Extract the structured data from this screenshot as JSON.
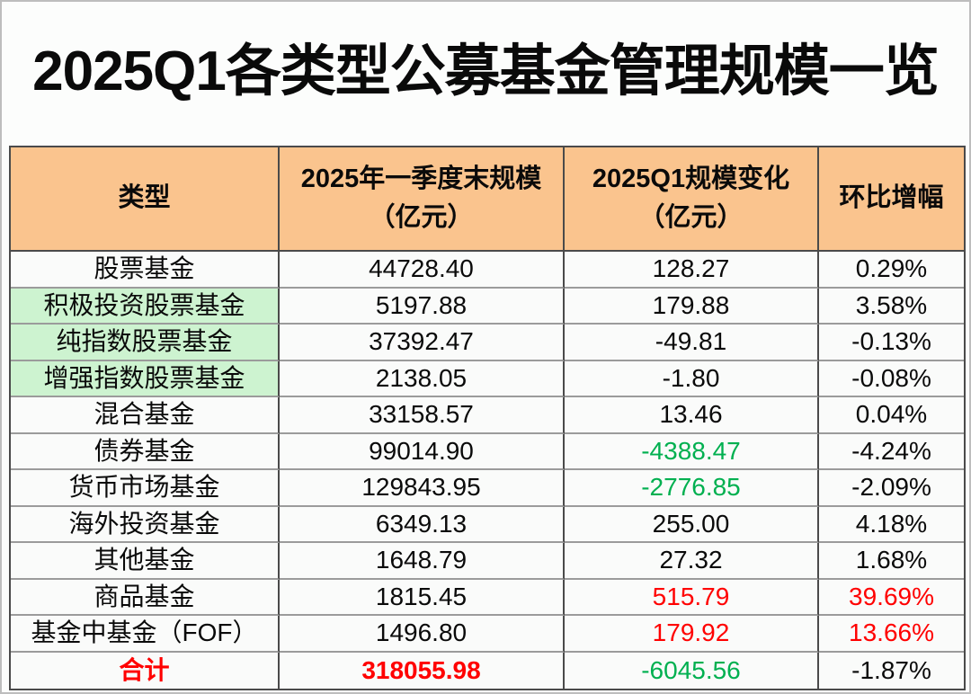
{
  "title": "2025Q1各类型公募基金管理规模一览",
  "colors": {
    "header_bg": "#FAC48E",
    "highlight_bg": "#CDF3D0",
    "up_red": "#FF0000",
    "down_green": "#00B050",
    "border_dark": "#4a4a4a",
    "border_light": "#9b9b9b"
  },
  "table": {
    "columns": [
      {
        "line1": "类型",
        "line2": ""
      },
      {
        "line1": "2025年一季度末规模",
        "line2": "（亿元）"
      },
      {
        "line1": "2025Q1规模变化",
        "line2": "（亿元）"
      },
      {
        "line1": "环比增幅",
        "line2": ""
      }
    ],
    "rows": [
      {
        "type": "股票基金",
        "highlight": false,
        "bold": false,
        "type_color": "black",
        "scale": "44728.40",
        "scale_color": "black",
        "change": "128.27",
        "change_color": "black",
        "pct": "0.29%",
        "pct_color": "black"
      },
      {
        "type": "积极投资股票基金",
        "highlight": true,
        "bold": false,
        "type_color": "black",
        "scale": "5197.88",
        "scale_color": "black",
        "change": "179.88",
        "change_color": "black",
        "pct": "3.58%",
        "pct_color": "black"
      },
      {
        "type": "纯指数股票基金",
        "highlight": true,
        "bold": false,
        "type_color": "black",
        "scale": "37392.47",
        "scale_color": "black",
        "change": "-49.81",
        "change_color": "black",
        "pct": "-0.13%",
        "pct_color": "black"
      },
      {
        "type": "增强指数股票基金",
        "highlight": true,
        "bold": false,
        "type_color": "black",
        "scale": "2138.05",
        "scale_color": "black",
        "change": "-1.80",
        "change_color": "black",
        "pct": "-0.08%",
        "pct_color": "black"
      },
      {
        "type": "混合基金",
        "highlight": false,
        "bold": false,
        "type_color": "black",
        "scale": "33158.57",
        "scale_color": "black",
        "change": "13.46",
        "change_color": "black",
        "pct": "0.04%",
        "pct_color": "black"
      },
      {
        "type": "债券基金",
        "highlight": false,
        "bold": false,
        "type_color": "black",
        "scale": "99014.90",
        "scale_color": "black",
        "change": "-4388.47",
        "change_color": "green",
        "pct": "-4.24%",
        "pct_color": "black"
      },
      {
        "type": "货币市场基金",
        "highlight": false,
        "bold": false,
        "type_color": "black",
        "scale": "129843.95",
        "scale_color": "black",
        "change": "-2776.85",
        "change_color": "green",
        "pct": "-2.09%",
        "pct_color": "black"
      },
      {
        "type": "海外投资基金",
        "highlight": false,
        "bold": false,
        "type_color": "black",
        "scale": "6349.13",
        "scale_color": "black",
        "change": "255.00",
        "change_color": "black",
        "pct": "4.18%",
        "pct_color": "black"
      },
      {
        "type": "其他基金",
        "highlight": false,
        "bold": false,
        "type_color": "black",
        "scale": "1648.79",
        "scale_color": "black",
        "change": "27.32",
        "change_color": "black",
        "pct": "1.68%",
        "pct_color": "black"
      },
      {
        "type": "商品基金",
        "highlight": false,
        "bold": false,
        "type_color": "black",
        "scale": "1815.45",
        "scale_color": "black",
        "change": "515.79",
        "change_color": "red",
        "pct": "39.69%",
        "pct_color": "red"
      },
      {
        "type": "基金中基金（FOF）",
        "highlight": false,
        "bold": false,
        "type_color": "black",
        "scale": "1496.80",
        "scale_color": "black",
        "change": "179.92",
        "change_color": "red",
        "pct": "13.66%",
        "pct_color": "red"
      },
      {
        "type": "合计",
        "highlight": false,
        "bold": true,
        "type_color": "red",
        "scale": "318055.98",
        "scale_color": "red",
        "change": "-6045.56",
        "change_color": "green",
        "pct": "-1.87%",
        "pct_color": "black"
      }
    ]
  },
  "chart_data": {
    "type": "table",
    "title": "2025Q1各类型公募基金管理规模一览",
    "columns": [
      "类型",
      "2025年一季度末规模（亿元）",
      "2025Q1规模变化（亿元）",
      "环比增幅"
    ],
    "rows": [
      [
        "股票基金",
        44728.4,
        128.27,
        "0.29%"
      ],
      [
        "积极投资股票基金",
        5197.88,
        179.88,
        "3.58%"
      ],
      [
        "纯指数股票基金",
        37392.47,
        -49.81,
        "-0.13%"
      ],
      [
        "增强指数股票基金",
        2138.05,
        -1.8,
        "-0.08%"
      ],
      [
        "混合基金",
        33158.57,
        13.46,
        "0.04%"
      ],
      [
        "债券基金",
        99014.9,
        -4388.47,
        "-4.24%"
      ],
      [
        "货币市场基金",
        129843.95,
        -2776.85,
        "-2.09%"
      ],
      [
        "海外投资基金",
        6349.13,
        255.0,
        "4.18%"
      ],
      [
        "其他基金",
        1648.79,
        27.32,
        "1.68%"
      ],
      [
        "商品基金",
        1815.45,
        515.79,
        "39.69%"
      ],
      [
        "基金中基金（FOF）",
        1496.8,
        179.92,
        "13.66%"
      ],
      [
        "合计",
        318055.98,
        -6045.56,
        "-1.87%"
      ]
    ]
  }
}
